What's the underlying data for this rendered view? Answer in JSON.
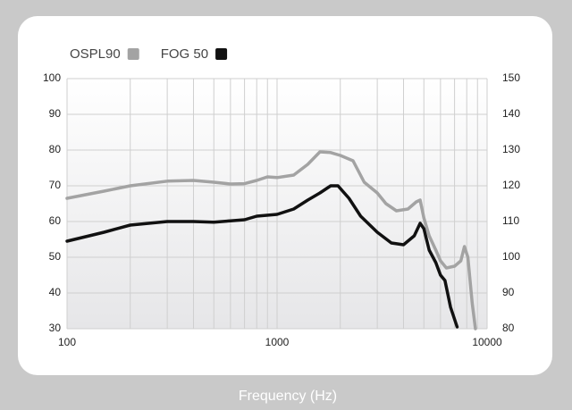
{
  "chart_data": {
    "type": "line",
    "x_label": "Frequency (Hz)",
    "x_scale": "log",
    "xlim": [
      100,
      10000
    ],
    "xticks": [
      100,
      1000,
      10000
    ],
    "xminorticks": [
      200,
      300,
      400,
      500,
      600,
      700,
      800,
      900,
      2000,
      3000,
      4000,
      5000,
      6000,
      7000,
      8000,
      9000
    ],
    "ylim": [
      30,
      100
    ],
    "yticks": [
      30,
      40,
      50,
      60,
      70,
      80,
      90,
      100
    ],
    "y2lim": [
      80,
      150
    ],
    "y2ticks": [
      80,
      90,
      100,
      110,
      120,
      130,
      140,
      150
    ],
    "grid": true,
    "legend": "top-left",
    "series": [
      {
        "name": "OSPL90",
        "color": "#a3a3a3",
        "axis": "y2",
        "x": [
          100,
          150,
          200,
          300,
          400,
          500,
          600,
          700,
          800,
          900,
          1000,
          1200,
          1400,
          1600,
          1800,
          2000,
          2300,
          2600,
          3000,
          3300,
          3700,
          4200,
          4600,
          4800,
          5000,
          5300,
          5700,
          6000,
          6400,
          7000,
          7500,
          7800,
          8100,
          8500,
          8800
        ],
        "values": [
          116.5,
          118.5,
          120,
          121.3,
          121.5,
          121,
          120.5,
          120.6,
          121.5,
          122.5,
          122.3,
          123,
          126,
          129.5,
          129.3,
          128.5,
          127,
          121,
          118,
          115,
          113,
          113.5,
          115.5,
          116,
          111,
          106,
          102,
          99,
          97,
          97.5,
          99,
          103,
          100,
          87,
          80
        ]
      },
      {
        "name": "FOG 50",
        "color": "#111111",
        "axis": "y",
        "x": [
          100,
          150,
          200,
          300,
          400,
          500,
          600,
          700,
          800,
          1000,
          1200,
          1400,
          1600,
          1800,
          1950,
          2200,
          2500,
          3000,
          3500,
          4000,
          4500,
          4800,
          5000,
          5300,
          5700,
          6000,
          6300,
          6700,
          7200
        ],
        "values": [
          54.5,
          57,
          59,
          60,
          60,
          59.8,
          60.2,
          60.5,
          61.5,
          62,
          63.5,
          66,
          68,
          70,
          70,
          66.5,
          61.5,
          57,
          54,
          53.5,
          56,
          59.5,
          58,
          52,
          48.5,
          45,
          43.5,
          36,
          30.5
        ]
      }
    ]
  }
}
